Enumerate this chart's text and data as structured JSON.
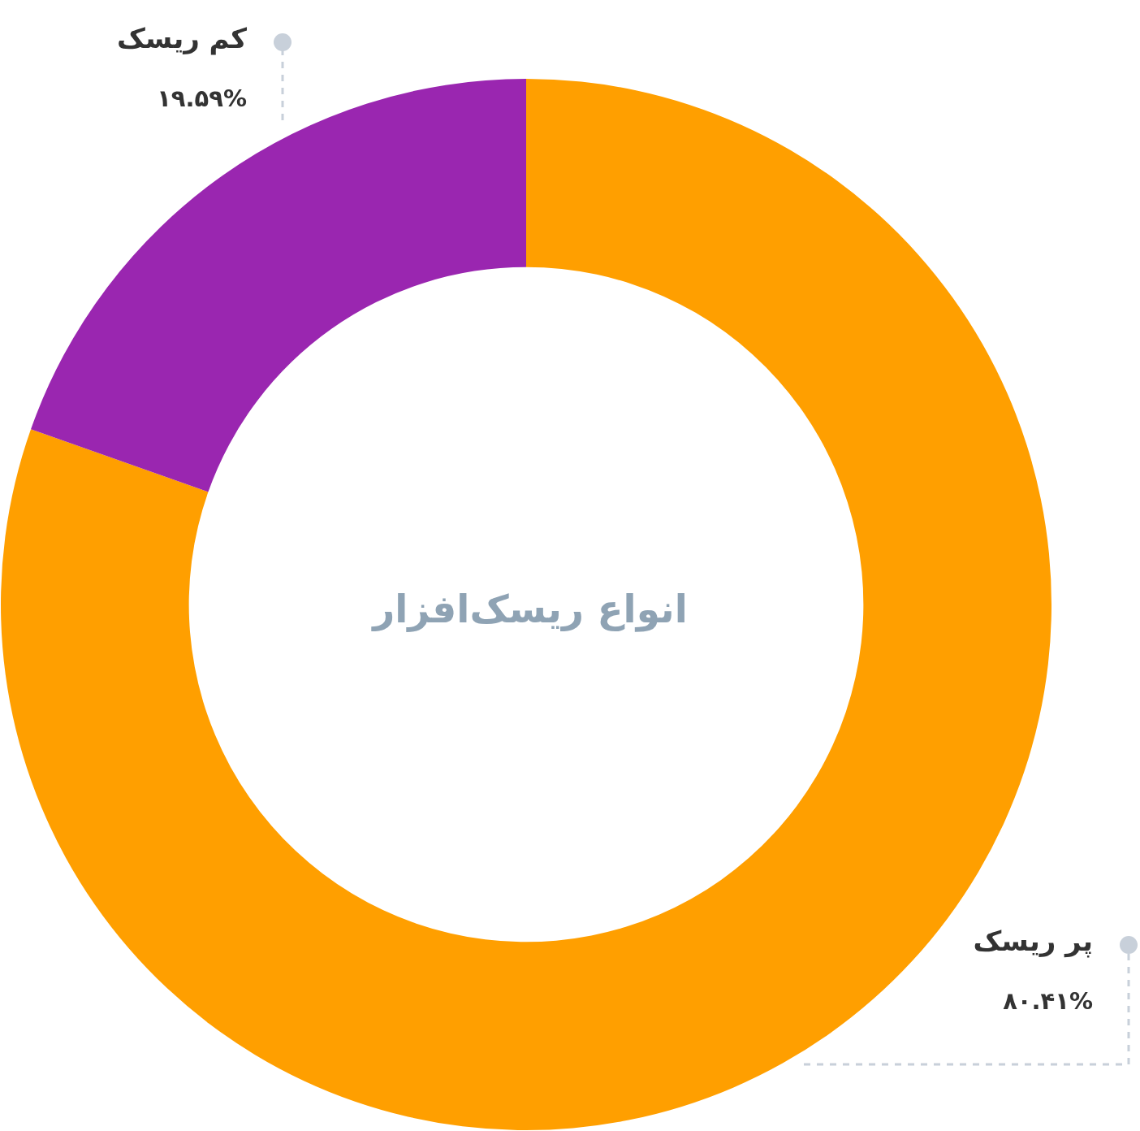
{
  "chart_data": {
    "type": "donut",
    "title": "انواع ریسک‌افزار",
    "categories": [
      "پر ریسک",
      "کم ریسک"
    ],
    "values": [
      80.41,
      19.59
    ],
    "colors": [
      "#ff9f00",
      "#9a26b0"
    ],
    "value_labels": [
      "۸۰.۴۱%",
      "۱۹.۵۹%"
    ],
    "legend": false
  }
}
